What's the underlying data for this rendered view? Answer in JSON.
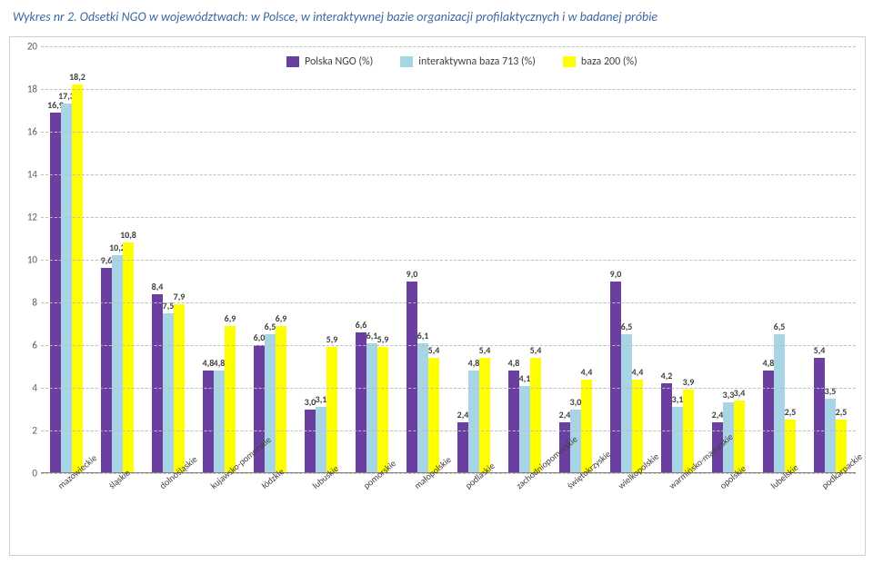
{
  "title": "Wykres nr 2. Odsetki NGO w województwach: w Polsce, w interaktywnej bazie organizacji profilaktycznych i w badanej próbie",
  "chart": {
    "type": "bar",
    "ylim_max": 20,
    "ytick_step": 2,
    "grid_color": "#bfbfbf",
    "background": "#ffffff",
    "series": [
      {
        "name": "Polska NGO (%)",
        "color": "#6b3fa0"
      },
      {
        "name": "interaktywna baza 713 (%)",
        "color": "#a8d5e5"
      },
      {
        "name": "baza 200 (%)",
        "color": "#ffff00"
      }
    ],
    "categories": [
      {
        "label": "mazowieckie",
        "values": [
          16.9,
          17.3,
          18.2
        ]
      },
      {
        "label": "śląskie",
        "values": [
          9.6,
          10.2,
          10.8
        ]
      },
      {
        "label": "dolnośląskie",
        "values": [
          8.4,
          7.5,
          7.9
        ]
      },
      {
        "label": "kujawsko-pomorskie",
        "values": [
          4.8,
          4.8,
          6.9
        ]
      },
      {
        "label": "łódzkie",
        "values": [
          6.0,
          6.5,
          6.9
        ]
      },
      {
        "label": "lubuskie",
        "values": [
          3.0,
          3.1,
          5.9
        ]
      },
      {
        "label": "pomorskie",
        "values": [
          6.6,
          6.1,
          5.9
        ]
      },
      {
        "label": "małopolskie",
        "values": [
          9.0,
          6.1,
          5.4
        ]
      },
      {
        "label": "podlaskie",
        "values": [
          2.4,
          4.8,
          5.4
        ]
      },
      {
        "label": "zachodniopomorskie",
        "values": [
          4.8,
          4.1,
          5.4
        ]
      },
      {
        "label": "świętokrzyskie",
        "values": [
          2.4,
          3.0,
          4.4
        ]
      },
      {
        "label": "wielkopolskie",
        "values": [
          9.0,
          6.5,
          4.4
        ]
      },
      {
        "label": "warmińsko-mazurskie",
        "values": [
          4.2,
          3.1,
          3.9
        ]
      },
      {
        "label": "opolskie",
        "values": [
          2.4,
          3.3,
          3.4
        ]
      },
      {
        "label": "lubelskie",
        "values": [
          4.8,
          6.5,
          2.5
        ]
      },
      {
        "label": "podkarpackie",
        "values": [
          5.4,
          3.5,
          2.5
        ]
      }
    ]
  }
}
